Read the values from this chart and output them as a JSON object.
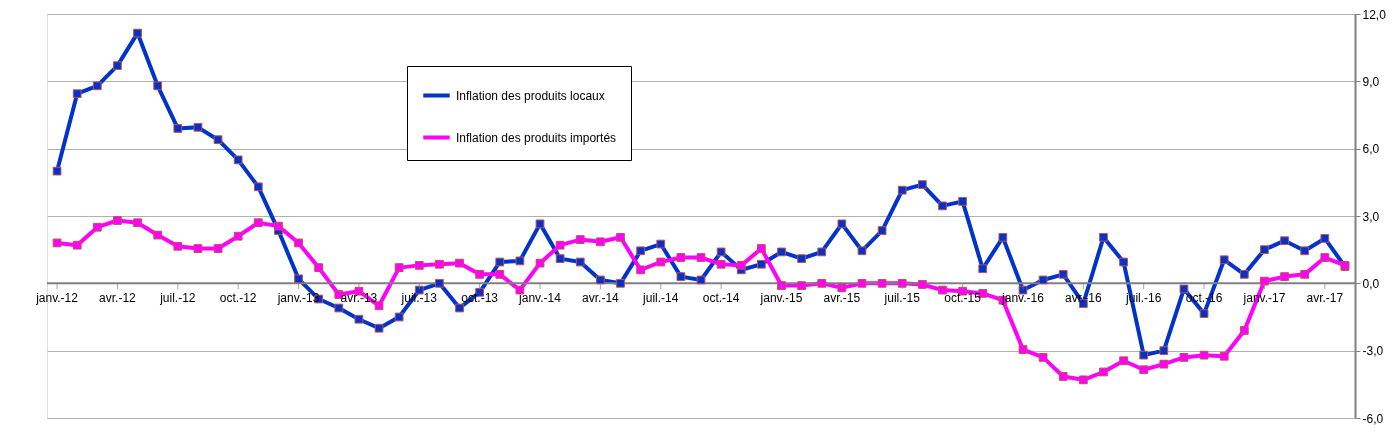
{
  "chart_data": {
    "type": "line",
    "categories": [
      "janv.-12",
      null,
      null,
      "avr.-12",
      null,
      null,
      "juil.-12",
      null,
      null,
      "oct.-12",
      null,
      null,
      "janv.-13",
      null,
      null,
      "avr.-13",
      null,
      null,
      "juil.-13",
      null,
      null,
      "oct.-13",
      null,
      null,
      "janv.-14",
      null,
      null,
      "avr.-14",
      null,
      null,
      "juil.-14",
      null,
      null,
      "oct.-14",
      null,
      null,
      "janv.-15",
      null,
      null,
      "avr.-15",
      null,
      null,
      "juil.-15",
      null,
      null,
      "oct.-15",
      null,
      null,
      "janv.-16",
      null,
      null,
      "avr.-16",
      null,
      null,
      "juil.-16",
      null,
      null,
      "oct.-16",
      null,
      null,
      "janv.-17",
      null,
      null,
      "avr.-17",
      null
    ],
    "series": [
      {
        "name": "Inflation des produits locaux",
        "color": "#0033cc",
        "values": [
          5.0,
          8.45,
          8.8,
          9.7,
          11.15,
          8.8,
          6.9,
          6.95,
          6.4,
          5.5,
          4.3,
          2.35,
          0.2,
          -0.7,
          -1.1,
          -1.6,
          -2.0,
          -1.5,
          -0.3,
          0.0,
          -1.1,
          -0.4,
          0.95,
          1.0,
          2.65,
          1.1,
          0.95,
          0.15,
          0.0,
          1.45,
          1.75,
          0.3,
          0.15,
          1.4,
          0.6,
          0.85,
          1.4,
          1.1,
          1.4,
          2.65,
          1.45,
          2.35,
          4.15,
          4.4,
          3.45,
          3.65,
          0.65,
          2.05,
          -0.3,
          0.15,
          0.4,
          -0.9,
          2.05,
          0.95,
          -3.2,
          -3.0,
          -0.25,
          -1.35,
          1.05,
          0.4,
          1.5,
          1.9,
          1.45,
          2.0,
          0.75
        ]
      },
      {
        "name": "Inflation des produits importés",
        "color": "#ff00ff",
        "values": [
          1.8,
          1.7,
          2.5,
          2.8,
          2.7,
          2.15,
          1.65,
          1.55,
          1.55,
          2.1,
          2.7,
          2.55,
          1.8,
          0.7,
          -0.5,
          -0.35,
          -1.0,
          0.7,
          0.8,
          0.85,
          0.9,
          0.4,
          0.4,
          -0.3,
          0.9,
          1.7,
          1.95,
          1.85,
          2.05,
          0.6,
          0.95,
          1.15,
          1.15,
          0.85,
          0.8,
          1.55,
          -0.1,
          -0.1,
          0.0,
          -0.2,
          0.0,
          0.0,
          0.0,
          -0.05,
          -0.3,
          -0.35,
          -0.45,
          -0.75,
          -2.95,
          -3.3,
          -4.15,
          -4.3,
          -3.95,
          -3.45,
          -3.85,
          -3.6,
          -3.3,
          -3.2,
          -3.25,
          -2.1,
          0.1,
          0.3,
          0.4,
          1.15,
          0.8
        ]
      }
    ],
    "ylim": [
      -6,
      12
    ],
    "yticks": [
      {
        "value": -6,
        "label": "-6,0"
      },
      {
        "value": -3,
        "label": "-3,0"
      },
      {
        "value": 0,
        "label": "0,0"
      },
      {
        "value": 3,
        "label": "3,0"
      },
      {
        "value": 6,
        "label": "6,0"
      },
      {
        "value": 9,
        "label": "9,0"
      },
      {
        "value": 12,
        "label": "12,0"
      }
    ],
    "grid": "y",
    "legend": "top",
    "marker": "square",
    "line_style": "solid"
  }
}
